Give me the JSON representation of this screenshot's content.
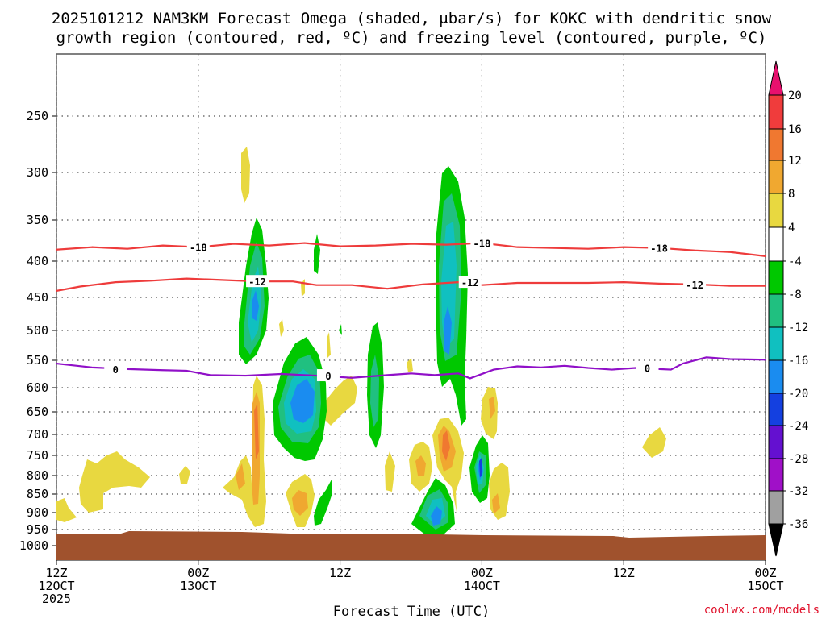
{
  "chart_data": {
    "type": "heatmap",
    "title_line1": "2025101212 NAM3KM Forecast Omega (shaded, μbar/s) for KOKC with dendritic snow",
    "title_line2": "growth region (contoured, red, ºC) and freezing level (contoured, purple, ºC)",
    "xlabel": "Forecast Time (UTC)",
    "credit": "coolwx.com/models",
    "x_range_hours": [
      0,
      60
    ],
    "y_range_hPa": [
      190,
      1040
    ],
    "y_ticks": [
      250,
      300,
      350,
      400,
      450,
      500,
      550,
      600,
      650,
      700,
      750,
      800,
      850,
      900,
      950,
      1000
    ],
    "x_ticks": [
      {
        "hour": 0,
        "time": "12Z",
        "date": "12OCT",
        "year": "2025"
      },
      {
        "hour": 12,
        "time": "00Z",
        "date": "13OCT",
        "year": ""
      },
      {
        "hour": 24,
        "time": "12Z",
        "date": "",
        "year": ""
      },
      {
        "hour": 36,
        "time": "00Z",
        "date": "14OCT",
        "year": ""
      },
      {
        "hour": 48,
        "time": "12Z",
        "date": "",
        "year": ""
      },
      {
        "hour": 60,
        "time": "00Z",
        "date": "15OCT",
        "year": ""
      }
    ],
    "colorbar": {
      "labels": [
        "20",
        "16",
        "12",
        "8",
        "4",
        "-4",
        "-8",
        "-12",
        "-16",
        "-20",
        "-24",
        "-28",
        "-32",
        "-36"
      ],
      "colors": [
        "#e8106e",
        "#f03c3c",
        "#f07830",
        "#f0a830",
        "#e8d840",
        "#ffffff",
        "#00c800",
        "#20c080",
        "#10c0c0",
        "#1a8cf0",
        "#1440e0",
        "#6410d0",
        "#a010c8",
        "#a0a0a0",
        "#000000"
      ]
    },
    "contours": [
      {
        "name": "-18 °C isotherm",
        "label": "-18",
        "color": "#ee3b3b",
        "points": [
          [
            0,
            386
          ],
          [
            3,
            383
          ],
          [
            6,
            385
          ],
          [
            9,
            381
          ],
          [
            12,
            383
          ],
          [
            15,
            379
          ],
          [
            18,
            381
          ],
          [
            21,
            378
          ],
          [
            24,
            382
          ],
          [
            27,
            381
          ],
          [
            30,
            379
          ],
          [
            33,
            380
          ],
          [
            36,
            378
          ],
          [
            39,
            383
          ],
          [
            42,
            384
          ],
          [
            45,
            385
          ],
          [
            48,
            383
          ],
          [
            51,
            384
          ],
          [
            54,
            387
          ],
          [
            57,
            389
          ],
          [
            60,
            394
          ]
        ]
      },
      {
        "name": "-12 °C isotherm",
        "label": "-12",
        "color": "#ee3b3b",
        "points": [
          [
            0,
            441
          ],
          [
            2,
            435
          ],
          [
            5,
            429
          ],
          [
            8,
            427
          ],
          [
            11,
            424
          ],
          [
            14,
            426
          ],
          [
            17,
            428
          ],
          [
            20,
            428
          ],
          [
            22,
            433
          ],
          [
            25,
            433
          ],
          [
            28,
            438
          ],
          [
            31,
            432
          ],
          [
            34,
            429
          ],
          [
            36,
            433
          ],
          [
            39,
            430
          ],
          [
            42,
            430
          ],
          [
            45,
            430
          ],
          [
            48,
            429
          ],
          [
            51,
            431
          ],
          [
            54,
            432
          ],
          [
            57,
            434
          ],
          [
            60,
            434
          ]
        ]
      },
      {
        "name": "0 °C freezing level",
        "label": "0",
        "color": "#9010c8",
        "points": [
          [
            0,
            556
          ],
          [
            3,
            563
          ],
          [
            6,
            566
          ],
          [
            9,
            568
          ],
          [
            11,
            569
          ],
          [
            13,
            577
          ],
          [
            16,
            578
          ],
          [
            19,
            575
          ],
          [
            22,
            578
          ],
          [
            25,
            582
          ],
          [
            28,
            577
          ],
          [
            30,
            574
          ],
          [
            32,
            577
          ],
          [
            34,
            574
          ],
          [
            35,
            583
          ],
          [
            37,
            567
          ],
          [
            39,
            561
          ],
          [
            41,
            563
          ],
          [
            43,
            560
          ],
          [
            45,
            564
          ],
          [
            47,
            567
          ],
          [
            49,
            564
          ],
          [
            51,
            566
          ],
          [
            52,
            567
          ],
          [
            53,
            556
          ],
          [
            55,
            545
          ],
          [
            57,
            548
          ],
          [
            60,
            549
          ]
        ]
      }
    ],
    "omega_features": [
      {
        "hour": 4.0,
        "p": 795,
        "value": 5
      },
      {
        "hour": 16.3,
        "p": 290,
        "value": 5
      },
      {
        "hour": 17.2,
        "p": 460,
        "value": -14
      },
      {
        "hour": 17.2,
        "p": 730,
        "value": 13
      },
      {
        "hour": 20.0,
        "p": 600,
        "value": -18
      },
      {
        "hour": 21.0,
        "p": 860,
        "value": 9
      },
      {
        "hour": 22.5,
        "p": 610,
        "value": 5
      },
      {
        "hour": 27.2,
        "p": 580,
        "value": -9
      },
      {
        "hour": 33.0,
        "p": 410,
        "value": -14
      },
      {
        "hour": 33.0,
        "p": 740,
        "value": 14
      },
      {
        "hour": 32.5,
        "p": 900,
        "value": -16
      },
      {
        "hour": 36.0,
        "p": 780,
        "value": -20
      },
      {
        "hour": 37.0,
        "p": 660,
        "value": 8
      },
      {
        "hour": 51.5,
        "p": 730,
        "value": 5
      }
    ]
  }
}
